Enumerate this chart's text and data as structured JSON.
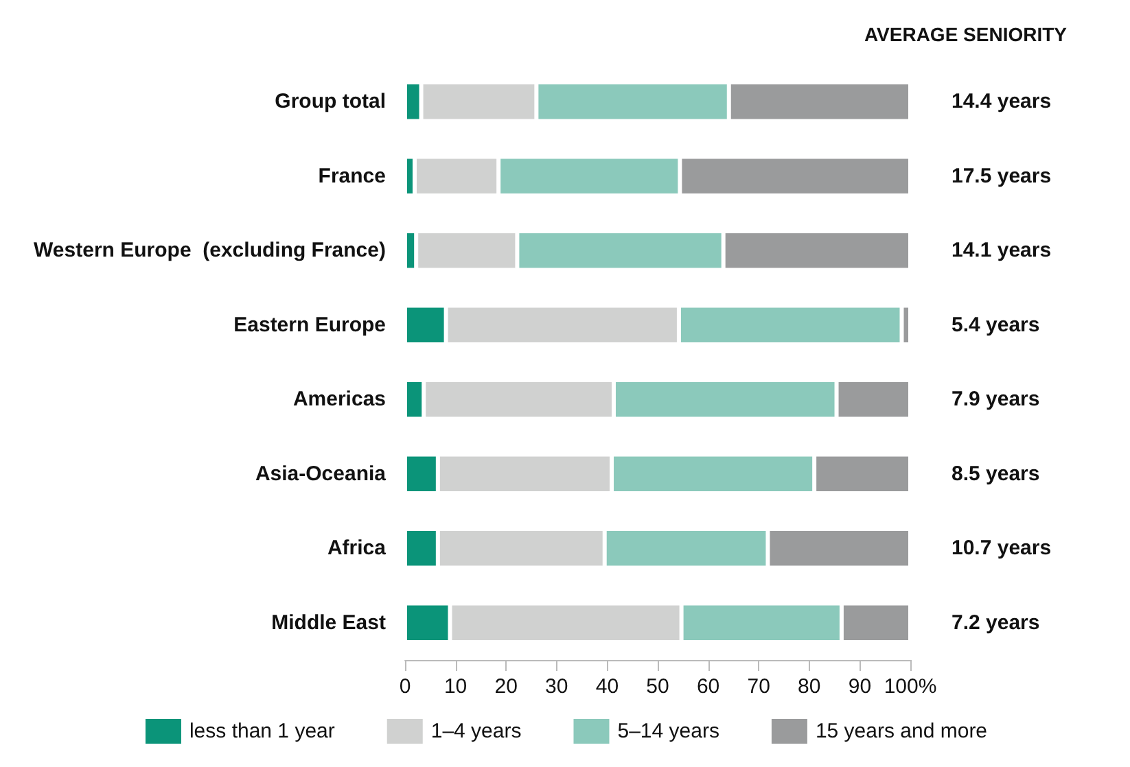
{
  "chart_data": {
    "type": "bar",
    "orientation": "horizontal",
    "stacked": true,
    "categories": [
      "Group total",
      "France",
      "Western Europe  (excluding France)",
      "Eastern Europe",
      "Americas",
      "Asia-Oceania",
      "Africa",
      "Middle East"
    ],
    "series": [
      {
        "name": "less than 1 year",
        "color": "#0b9479",
        "values": [
          3.2,
          1.9,
          2.2,
          8.1,
          3.7,
          6.5,
          6.5,
          8.9
        ]
      },
      {
        "name": "1–4 years",
        "color": "#d0d1d0",
        "values": [
          22.8,
          16.6,
          20.0,
          46.1,
          37.6,
          34.4,
          33.0,
          45.8
        ]
      },
      {
        "name": "5–14 years",
        "color": "#8bc9bb",
        "values": [
          38.1,
          35.9,
          40.8,
          44.1,
          44.1,
          40.1,
          32.3,
          31.7
        ]
      },
      {
        "name": "15 years and more",
        "color": "#9a9b9c",
        "values": [
          35.9,
          45.6,
          37.0,
          1.7,
          14.6,
          19.0,
          28.2,
          13.6
        ]
      }
    ],
    "xlim": [
      0,
      100
    ],
    "xticks": [
      0,
      10,
      20,
      30,
      40,
      50,
      60,
      70,
      80,
      90,
      {
        "value": 100,
        "label": "100%"
      }
    ],
    "grid": false,
    "legend": "bottom",
    "annotations": [
      "AVERAGE SENIORITY",
      "14.4 years",
      "17.5 years",
      "14.1 years",
      "5.4 years",
      "7.9 years",
      "8.5 years",
      "10.7 years",
      "7.2 years"
    ]
  }
}
